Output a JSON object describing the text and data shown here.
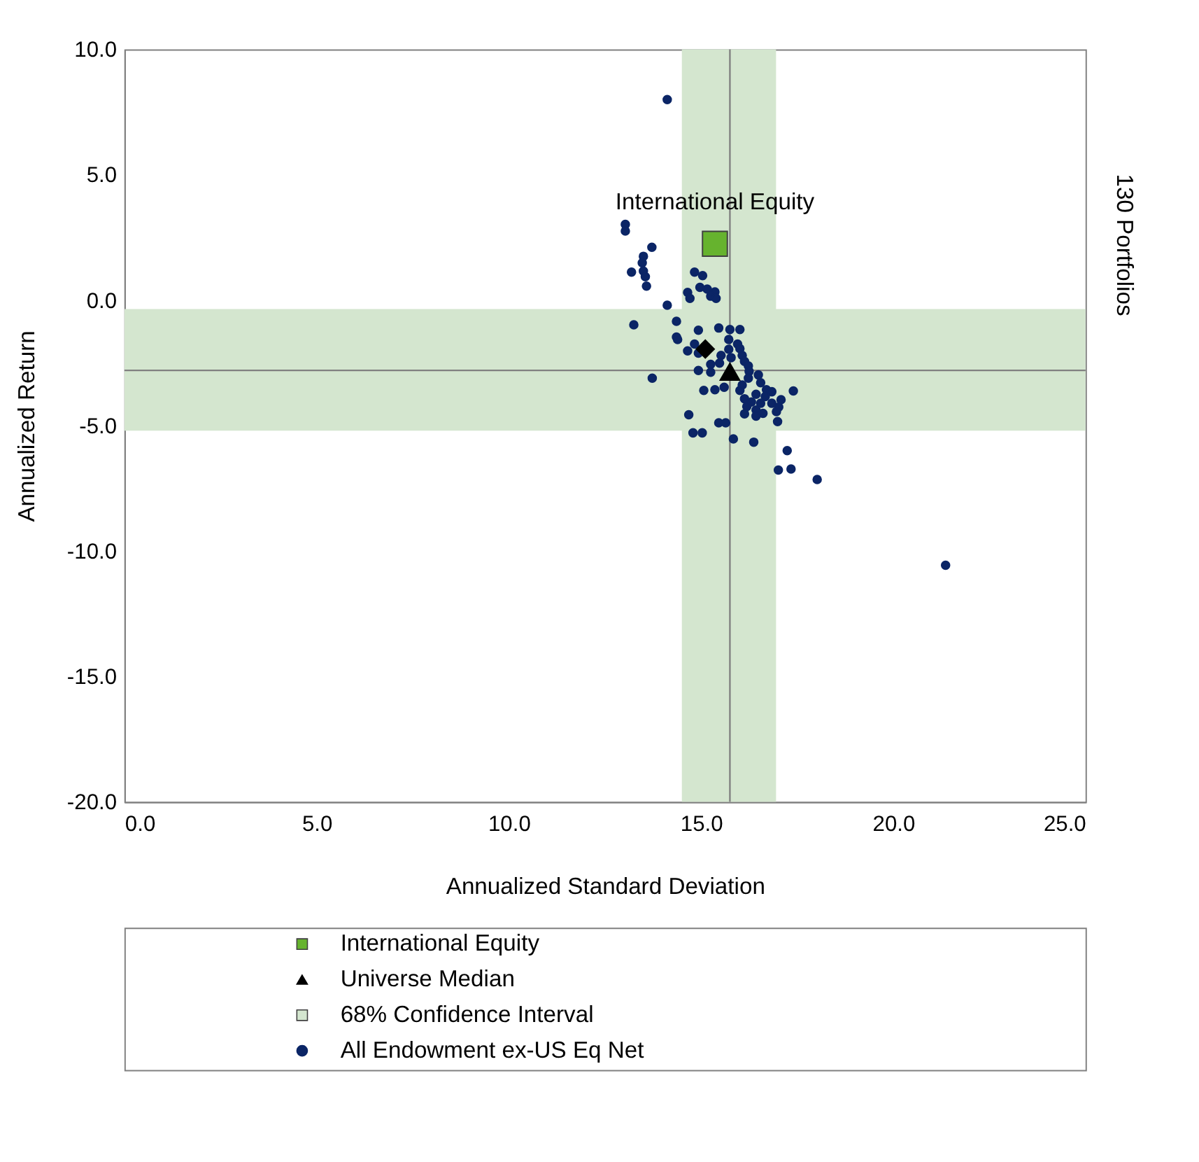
{
  "chart_data": {
    "type": "scatter",
    "xlabel": "Annualized Standard Deviation",
    "ylabel": "Annualized Return",
    "y2label": "130 Portfolios",
    "xlim": [
      0,
      25
    ],
    "ylim": [
      -20,
      10
    ],
    "xticks": [
      {
        "value": 0,
        "label": "0.0"
      },
      {
        "value": 5,
        "label": "5.0"
      },
      {
        "value": 10,
        "label": "10.0"
      },
      {
        "value": 15,
        "label": "15.0"
      },
      {
        "value": 20,
        "label": "20.0"
      },
      {
        "value": 25,
        "label": "25.0"
      }
    ],
    "yticks": [
      {
        "value": -20,
        "label": "-20.0"
      },
      {
        "value": -15,
        "label": "-15.0"
      },
      {
        "value": -10,
        "label": "-10.0"
      },
      {
        "value": -5,
        "label": "-5.0"
      },
      {
        "value": 0,
        "label": "0.0"
      },
      {
        "value": 5,
        "label": "5.0"
      },
      {
        "value": 10,
        "label": "10.0"
      }
    ],
    "grid": false,
    "legend": "bottom",
    "bands": [
      {
        "axis": "x",
        "from": 14.5,
        "to": 16.95,
        "label": "68% Confidence Interval",
        "color": "#d4e6cf"
      },
      {
        "axis": "y",
        "from": -5.2,
        "to": -0.35,
        "color": "#d4e6cf"
      }
    ],
    "ref_lines": [
      {
        "axis": "x",
        "value": 15.75,
        "color": "#808080"
      },
      {
        "axis": "y",
        "value": -2.8,
        "color": "#808080"
      }
    ],
    "annotations": [
      {
        "text": "International Equity",
        "x": 15.36,
        "y": 2.25
      }
    ],
    "series": [
      {
        "name": "All Endowment ex-US Eq Net",
        "color": "#0b2566",
        "marker": "circle",
        "x": [
          14.12,
          13.03,
          13.03,
          13.72,
          13.5,
          13.47,
          13.19,
          13.5,
          13.55,
          13.58,
          14.83,
          15.04,
          14.97,
          15.16,
          15.36,
          15.25,
          14.65,
          14.71,
          15.39,
          14.12,
          14.36,
          13.25,
          15.46,
          15.75,
          16.01,
          14.93,
          14.36,
          14.39,
          15.72,
          14.83,
          15.95,
          16.01,
          14.65,
          15.72,
          14.93,
          16.07,
          15.52,
          15.78,
          16.13,
          15.25,
          15.48,
          16.23,
          14.93,
          15.25,
          16.25,
          13.73,
          16.49,
          16.23,
          16.07,
          16.55,
          15.6,
          15.36,
          15.07,
          16.01,
          16.7,
          16.84,
          17.4,
          16.43,
          16.67,
          16.13,
          17.08,
          16.31,
          16.55,
          16.84,
          16.19,
          17.02,
          16.43,
          16.96,
          16.61,
          14.68,
          16.13,
          16.43,
          16.99,
          15.46,
          15.64,
          14.79,
          15.03,
          15.84,
          16.37,
          17.24,
          17.01,
          17.34,
          18.02,
          21.36
        ],
        "values": [
          8.0,
          3.02,
          2.76,
          2.11,
          1.75,
          1.49,
          1.12,
          1.16,
          0.94,
          0.56,
          1.12,
          0.98,
          0.51,
          0.44,
          0.33,
          0.16,
          0.31,
          0.07,
          0.07,
          -0.2,
          -0.84,
          -0.98,
          -1.11,
          -1.17,
          -1.17,
          -1.2,
          -1.47,
          -1.57,
          -1.57,
          -1.75,
          -1.75,
          -1.93,
          -2.02,
          -1.96,
          -2.11,
          -2.2,
          -2.2,
          -2.29,
          -2.44,
          -2.56,
          -2.51,
          -2.62,
          -2.8,
          -2.87,
          -2.84,
          -3.11,
          -2.98,
          -3.11,
          -3.38,
          -3.29,
          -3.47,
          -3.57,
          -3.6,
          -3.6,
          -3.57,
          -3.65,
          -3.62,
          -3.75,
          -3.84,
          -3.93,
          -3.97,
          -4.06,
          -4.11,
          -4.11,
          -4.24,
          -4.26,
          -4.38,
          -4.44,
          -4.51,
          -4.57,
          -4.53,
          -4.62,
          -4.84,
          -4.89,
          -4.89,
          -5.29,
          -5.29,
          -5.53,
          -5.66,
          -6.0,
          -6.77,
          -6.73,
          -7.15,
          -10.57
        ]
      },
      {
        "name": "Universe Median",
        "color": "#000000",
        "marker": "triangle",
        "x": [
          15.75
        ],
        "values": [
          -2.85
        ]
      },
      {
        "color": "#000000",
        "marker": "diamond",
        "x": [
          15.11
        ],
        "values": [
          -1.95
        ]
      },
      {
        "name": "International Equity",
        "color": "#66b32e",
        "marker": "square",
        "x": [
          15.36
        ],
        "values": [
          2.25
        ]
      }
    ]
  }
}
